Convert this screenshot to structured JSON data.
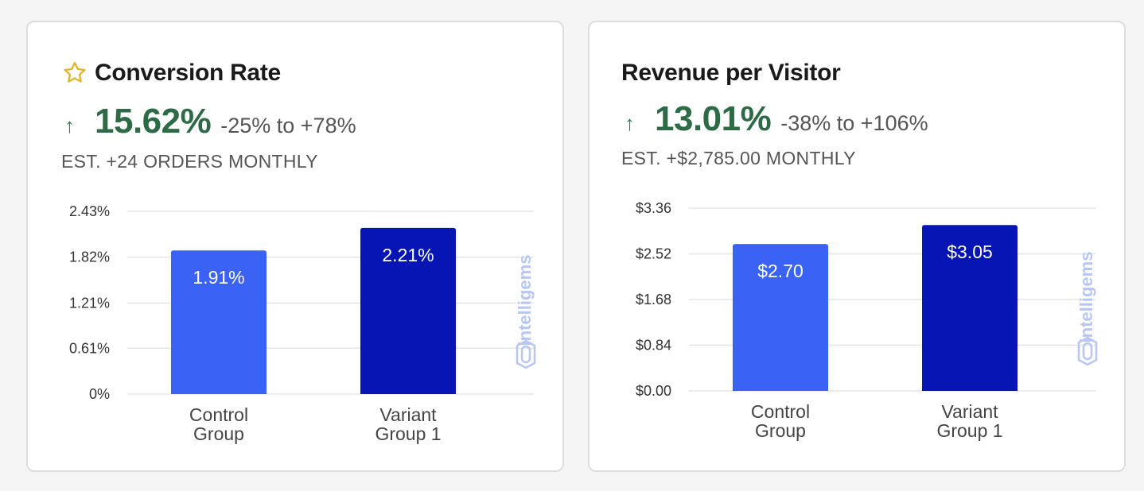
{
  "colors": {
    "control": "#3a63f5",
    "variant": "#0615b3",
    "positive": "#2d6b47",
    "grid": "#e6e6e6",
    "watermark": "#b8c6f5"
  },
  "icons": {
    "favorite": "star-outline-icon",
    "trend": "arrow-up-icon",
    "watermark": "intelligems-logo"
  },
  "chart_data": [
    {
      "type": "bar",
      "title": "Conversion Rate",
      "lift_arrow": "↑",
      "lift": "15.62%",
      "range": "-25% to +78%",
      "estimate": "EST. +24 ORDERS MONTHLY",
      "categories": [
        [
          "Control",
          "Group"
        ],
        [
          "Variant",
          "Group 1"
        ]
      ],
      "values": [
        1.91,
        2.21
      ],
      "value_labels": [
        "1.91%",
        "2.21%"
      ],
      "yticks": [
        0,
        0.61,
        1.21,
        1.82,
        2.43
      ],
      "ytick_labels": [
        "0%",
        "0.61%",
        "1.21%",
        "1.82%",
        "2.43%"
      ],
      "ylim": [
        0,
        2.43
      ],
      "grid": true,
      "watermark": "intelligems"
    },
    {
      "type": "bar",
      "title": "Revenue per Visitor",
      "lift_arrow": "↑",
      "lift": "13.01%",
      "range": "-38% to +106%",
      "estimate": "EST. +$2,785.00 MONTHLY",
      "categories": [
        [
          "Control",
          "Group"
        ],
        [
          "Variant",
          "Group 1"
        ]
      ],
      "values": [
        2.7,
        3.05
      ],
      "value_labels": [
        "$2.70",
        "$3.05"
      ],
      "yticks": [
        0,
        0.84,
        1.68,
        2.52,
        3.36
      ],
      "ytick_labels": [
        "$0.00",
        "$0.84",
        "$1.68",
        "$2.52",
        "$3.36"
      ],
      "ylim": [
        0,
        3.36
      ],
      "grid": true,
      "watermark": "intelligems"
    }
  ]
}
